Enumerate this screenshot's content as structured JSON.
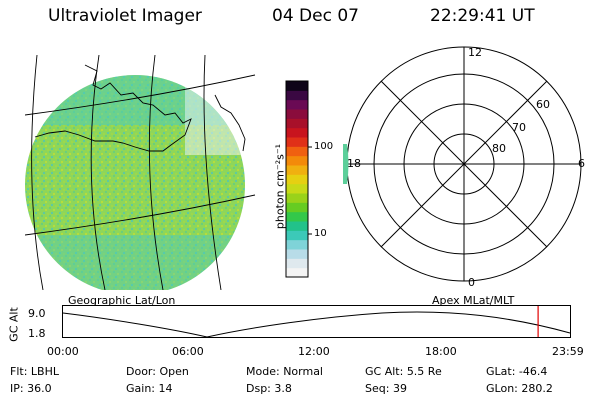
{
  "header": {
    "title": "Ultraviolet Imager",
    "date": "04 Dec 07",
    "time": "22:29:41 UT"
  },
  "colorbar": {
    "unit_label": "photon cm⁻²s⁻¹",
    "ticks": [
      "100",
      "10"
    ],
    "colors": [
      "#f4f4f4",
      "#dfe9ee",
      "#b8dce8",
      "#7fd3d8",
      "#3cc9b8",
      "#22c28a",
      "#33c84a",
      "#66cc22",
      "#9ad21a",
      "#c8da18",
      "#e6d012",
      "#f0b010",
      "#f38a0a",
      "#f06010",
      "#e03018",
      "#c8141e",
      "#a8102a",
      "#8a0c3c",
      "#6a0a54",
      "#3a0842",
      "#0e0418"
    ]
  },
  "maps": {
    "left_label": "Geographic Lat/Lon",
    "right_label": "Apex MLat/MLT",
    "polar": {
      "mlt_labels": [
        "12",
        "6",
        "0",
        "18"
      ],
      "lat_labels": [
        "60",
        "70",
        "80"
      ]
    }
  },
  "orbit": {
    "ylabel": "GC Alt",
    "y_ticks": [
      "9.0",
      "1.8"
    ],
    "x_ticks": [
      "00:00",
      "06:00",
      "12:00",
      "18:00",
      "23:59"
    ],
    "current_time_marker_hours": 22.49,
    "colors": {
      "marker": "#e00000"
    }
  },
  "status": {
    "row1": [
      {
        "label": "Flt:",
        "value": "LBHL"
      },
      {
        "label": "Door:",
        "value": "Open"
      },
      {
        "label": "Mode:",
        "value": "Normal"
      },
      {
        "label": "GC Alt:",
        "value": "5.5 Re"
      },
      {
        "label": "GLat:",
        "value": "-46.4"
      }
    ],
    "row2": [
      {
        "label": "IP:",
        "value": "36.0"
      },
      {
        "label": "Gain:",
        "value": "14"
      },
      {
        "label": "Dsp:",
        "value": "3.8"
      },
      {
        "label": "Seq:",
        "value": "39"
      },
      {
        "label": "GLon:",
        "value": "280.2"
      }
    ]
  }
}
